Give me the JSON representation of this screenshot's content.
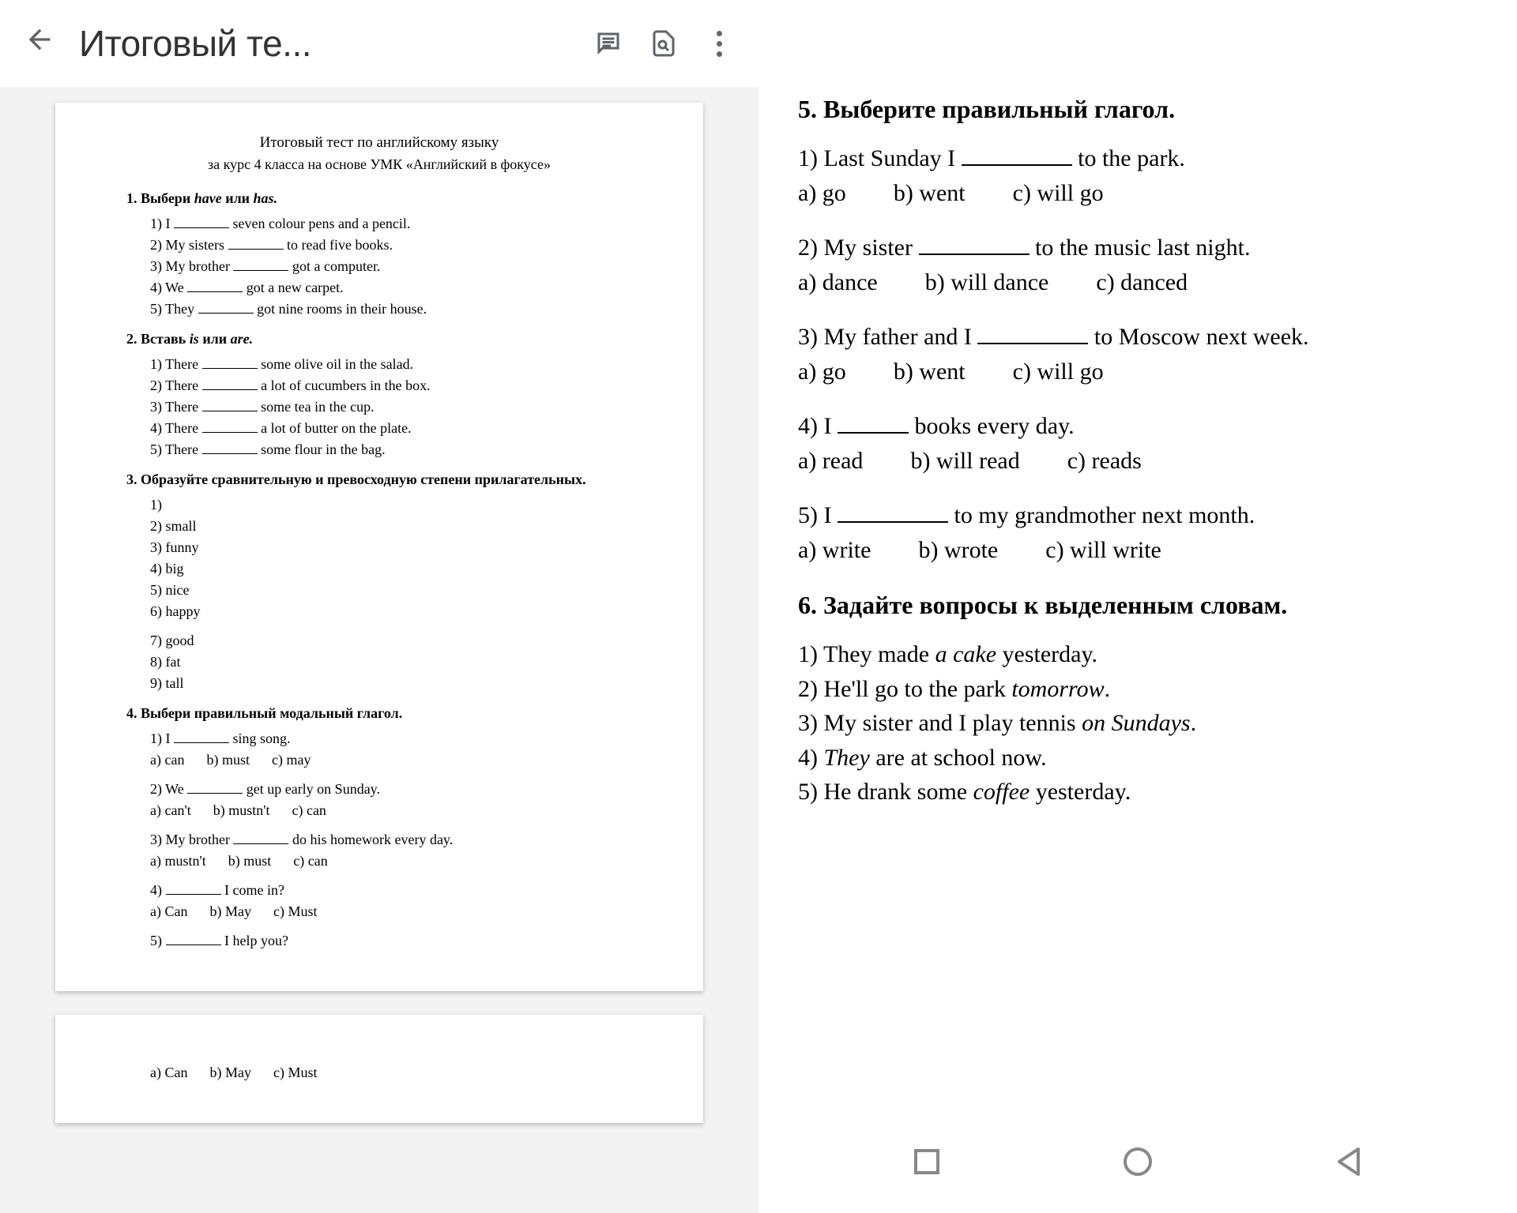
{
  "colors": {
    "icon": "#5f6368",
    "text": "#202124",
    "pageShadow": "rgba(0,0,0,0.25)",
    "docBg": "#f3f3f3"
  },
  "topbar": {
    "title": "Итоговый те..."
  },
  "doc": {
    "title": "Итоговый тест по английскому языку",
    "subtitle": "за курс 4 класса на основе УМК «Английский в фокусе»",
    "s1": {
      "head_pre": "1. Выбери ",
      "head_i1": "have",
      "head_mid": " или  ",
      "head_i2": "has.",
      "items": [
        {
          "n": "1)",
          "a": "I ",
          "b": " seven colour pens and a pencil."
        },
        {
          "n": "2)",
          "a": "My sisters ",
          "b": " to read  five books."
        },
        {
          "n": "3)",
          "a": "My brother ",
          "b": " got a computer."
        },
        {
          "n": "4)",
          "a": "We ",
          "b": " got a new carpet."
        },
        {
          "n": "5)",
          "a": "They ",
          "b": " got nine rooms in their house."
        }
      ]
    },
    "s2": {
      "head_pre": "2. Вставь ",
      "head_i1": "is",
      "head_mid": " или  ",
      "head_i2": "are.",
      "items": [
        {
          "n": "1)",
          "a": "There ",
          "b": " some olive oil in the salad."
        },
        {
          "n": "2)",
          "a": "There ",
          "b": " a lot of cucumbers in the box."
        },
        {
          "n": "3)",
          "a": "There ",
          "b": " some tea in the cup."
        },
        {
          "n": "4)",
          "a": "There ",
          "b": " a lot of butter on the plate."
        },
        {
          "n": "5)",
          "a": "There ",
          "b": " some flour in the bag."
        }
      ]
    },
    "s3": {
      "head": "3. Образуйте сравнительную и превосходную степени прилагательных.",
      "items": [
        "1)",
        "2)  small",
        "3)  funny",
        "4)  big",
        "5)  nice",
        "6)  happy",
        "",
        "7)  good",
        "8)  fat",
        "9)  tall"
      ]
    },
    "s4": {
      "head": "4. Выбери правильный модальный глагол.",
      "groups": [
        {
          "q": {
            "n": "1)",
            "a": "I ",
            "b": " sing song."
          },
          "opts": [
            "a) can",
            "b) must",
            "c) may"
          ]
        },
        {
          "q": {
            "n": "2)",
            "a": "We ",
            "b": " get up early on Sunday."
          },
          "opts": [
            "a) can't",
            "b) mustn't",
            "c) can"
          ]
        },
        {
          "q": {
            "n": "3)",
            "a": "My brother ",
            "b": " do his homework every day."
          },
          "opts": [
            "a) mustn't",
            "b) must",
            "c) can"
          ]
        },
        {
          "q": {
            "n": "4)",
            "a": "",
            "b": " I come in?"
          },
          "opts": [
            "a) Can",
            "b) May",
            "c) Must"
          ]
        },
        {
          "q": {
            "n": "5)",
            "a": "",
            "b": " I help you?"
          },
          "opts": []
        }
      ],
      "page2_opts": [
        "a) Can",
        "b) May",
        "c) Must"
      ]
    }
  },
  "rp": {
    "s5": {
      "head": "5. Выберите правильный глагол.",
      "groups": [
        {
          "q": {
            "n": "1)",
            "a": "Last Sunday I ",
            "b": " to the park."
          },
          "opts": [
            "a) go",
            "b) went",
            "c) will go"
          ]
        },
        {
          "q": {
            "n": "2)",
            "a": "My sister ",
            "b": " to the music last night."
          },
          "opts": [
            "a) dance",
            "b) will dance",
            "c) danced"
          ]
        },
        {
          "q": {
            "n": "3)",
            "a": "My father and I ",
            "b": " to Moscow next week."
          },
          "opts": [
            "a) go",
            "b) went",
            "c) will go"
          ]
        },
        {
          "q": {
            "n": "4)",
            "a": "I ",
            "b": " books every day.",
            "short": true
          },
          "opts": [
            "a) read",
            "b) will read",
            "c) reads"
          ]
        },
        {
          "q": {
            "n": "5)",
            "a": "I ",
            "b": " to my grandmother next month."
          },
          "opts": [
            "a) write",
            "b) wrote",
            "c) will write"
          ]
        }
      ]
    },
    "s6": {
      "head": "6. Задайте вопросы к выделенным словам.",
      "items": [
        {
          "n": "1)",
          "parts": [
            {
              "t": "They made "
            },
            {
              "t": "a cake",
              "i": true
            },
            {
              "t": " yesterday."
            }
          ]
        },
        {
          "n": "2)",
          "parts": [
            {
              "t": "He'll go to the park "
            },
            {
              "t": "tomorrow",
              "i": true
            },
            {
              "t": "."
            }
          ]
        },
        {
          "n": "3)",
          "parts": [
            {
              "t": "My sister and I play tennis "
            },
            {
              "t": "on Sundays",
              "i": true
            },
            {
              "t": "."
            }
          ]
        },
        {
          "n": "4)",
          "parts": [
            {
              "t": "They",
              "i": true
            },
            {
              "t": " are at school now."
            }
          ]
        },
        {
          "n": "5)",
          "parts": [
            {
              "t": "He drank some "
            },
            {
              "t": "coffee",
              "i": true
            },
            {
              "t": " yesterday."
            }
          ]
        }
      ]
    }
  }
}
